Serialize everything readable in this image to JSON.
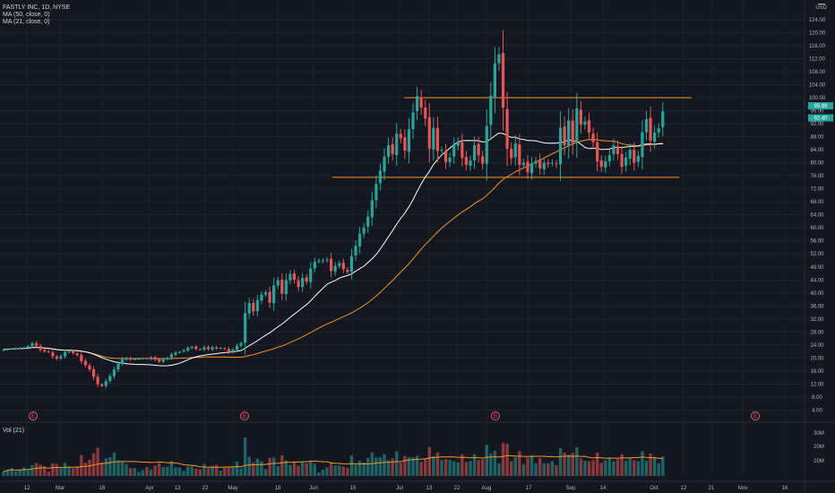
{
  "symbol_legend": {
    "name": "FASTLY INC, 1D, NYSE"
  },
  "indicators": {
    "ma1": "MA (50, close, 0)",
    "ma2": "MA (21, close, 0)",
    "vol": "Vol (21)"
  },
  "price_axis": {
    "currency": "USD"
  },
  "colors": {
    "background": "#131722",
    "up": "#26a69a",
    "down": "#ef5350",
    "ma50": "#f7931a",
    "ma21": "#ffffff",
    "level": "#f7931a",
    "grid": "#1e222d",
    "axis_text": "#b2b5be",
    "event": "#f7525f"
  },
  "events": {
    "label": "E"
  },
  "chart_data": {
    "type": "candlestick",
    "y_ticks": [
      "4.00",
      "8.00",
      "12.00",
      "16.00",
      "20.00",
      "24.00",
      "28.00",
      "32.00",
      "36.00",
      "40.00",
      "44.00",
      "48.00",
      "52.00",
      "56.00",
      "60.00",
      "64.00",
      "68.00",
      "72.00",
      "76.00",
      "80.00",
      "84.00",
      "88.00",
      "92.00",
      "96.00",
      "100.00",
      "104.00",
      "108.00",
      "112.00",
      "116.00",
      "120.00",
      "124.00"
    ],
    "ylim": [
      0,
      128
    ],
    "volume_ticks": [
      "10M",
      "20M",
      "30M"
    ],
    "x_ticks": [
      "12",
      "Mar",
      "16",
      "Apr",
      "13",
      "22",
      "May",
      "18",
      "Jun",
      "15",
      "Jul",
      "13",
      "22",
      "Aug",
      "17",
      "Sep",
      "14",
      "Oct",
      "12",
      "21",
      "Nov",
      "16"
    ],
    "price_labels": {
      "last": "95.99",
      "close": "92.40"
    },
    "resistance_level": 100.0,
    "support_level": 75.5,
    "earnings_count": 4,
    "closes": [
      22.6,
      22.8,
      22.9,
      23.0,
      23.1,
      23.2,
      23.6,
      24.5,
      23.8,
      22.5,
      22.0,
      21.8,
      20.5,
      19.8,
      20.6,
      21.8,
      22.0,
      21.5,
      20.9,
      19.0,
      17.8,
      16.5,
      14.2,
      12.0,
      11.4,
      12.9,
      14.5,
      16.5,
      18.2,
      19.6,
      20.0,
      19.5,
      19.7,
      19.8,
      19.9,
      19.8,
      20.2,
      19.5,
      18.9,
      19.6,
      20.0,
      21.1,
      21.7,
      21.9,
      22.4,
      23.1,
      23.4,
      22.8,
      22.6,
      23.3,
      22.7,
      23.3,
      22.9,
      23.1,
      22.8,
      21.8,
      22.6,
      23.8,
      24.6,
      33.8,
      36.9,
      34.3,
      37.8,
      39.5,
      40.2,
      37.0,
      42.3,
      43.9,
      39.8,
      43.9,
      45.8,
      44.1,
      41.8,
      44.6,
      43.5,
      47.5,
      49.5,
      49.9,
      50.0,
      50.3,
      46.7,
      48.3,
      49.1,
      47.3,
      46.5,
      51.3,
      54.5,
      58.2,
      60.1,
      63.5,
      68.5,
      73.5,
      77.6,
      81.9,
      85.4,
      82.7,
      88.9,
      87.5,
      83.7,
      90.3,
      95.5,
      100.5,
      97.0,
      93.6,
      84.4,
      90.7,
      83.6,
      84.0,
      80.2,
      81.6,
      85.5,
      86.3,
      81.5,
      79.4,
      80.7,
      85.4,
      82.3,
      79.7,
      91.3,
      100.6,
      110.6,
      113.3,
      96.9,
      84.3,
      81.4,
      86.0,
      79.3,
      80.0,
      77.1,
      79.8,
      80.6,
      78.3,
      80.0,
      79.6,
      80.1,
      79.5,
      90.8,
      85.4,
      93.0,
      86.0,
      96.7,
      91.7,
      92.7,
      89.3,
      86.3,
      80.4,
      78.8,
      80.5,
      82.3,
      85.4,
      82.7,
      78.8,
      81.6,
      84.0,
      80.0,
      82.1,
      89.4,
      93.4,
      86.8,
      89.3,
      90.6,
      95.8
    ]
  }
}
